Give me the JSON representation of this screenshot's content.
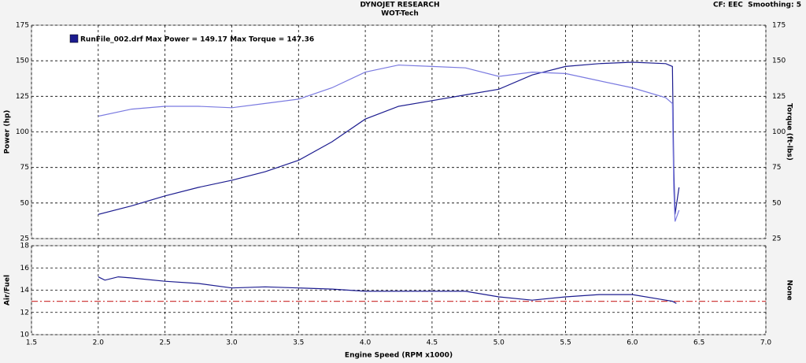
{
  "chart_data": [
    {
      "type": "line",
      "title": "DYNOJET RESEARCH",
      "subtitle": "WOT-Tech",
      "annotation": "CF: EEC  Smoothing: 5",
      "legend_text": "RunFile_002.drf Max Power = 149.17 Max Torque = 147.36",
      "ylabel": "Power (hp)",
      "y2label": "Torque (ft-lbs)",
      "x": [
        2.0,
        2.25,
        2.5,
        2.75,
        3.0,
        3.25,
        3.5,
        3.75,
        4.0,
        4.25,
        4.5,
        4.75,
        5.0,
        5.25,
        5.5,
        5.75,
        6.0,
        6.25,
        6.3,
        6.31,
        6.32,
        6.35
      ],
      "series": [
        {
          "color": "#1c1c8f",
          "values": [
            42,
            48,
            55,
            61,
            66,
            72,
            80,
            93,
            109,
            118,
            122,
            126,
            130,
            140,
            146,
            148,
            149,
            148,
            146,
            75,
            42,
            61
          ]
        },
        {
          "color": "#7a7ae0",
          "axis": "y2",
          "values": [
            111,
            116,
            118,
            118,
            117,
            120,
            123,
            131,
            142,
            147,
            146,
            145,
            139,
            142,
            141,
            136,
            131,
            124,
            120,
            60,
            37,
            45
          ]
        }
      ],
      "ylim": [
        25,
        175
      ],
      "yticks": [
        25,
        50,
        75,
        100,
        125,
        150,
        175
      ],
      "y2lim": [
        25,
        175
      ],
      "y2ticks": [
        25,
        50,
        75,
        100,
        125,
        150,
        175
      ],
      "grid": true
    },
    {
      "type": "line",
      "ylabel": "Air/Fuel",
      "y2label": "None",
      "xlabel": "Engine Speed (RPM x1000)",
      "x": [
        2.0,
        2.05,
        2.15,
        2.25,
        2.5,
        2.75,
        3.0,
        3.25,
        3.5,
        3.75,
        4.0,
        4.25,
        4.5,
        4.75,
        5.0,
        5.25,
        5.5,
        5.75,
        6.0,
        6.25,
        6.3,
        6.33
      ],
      "series": [
        {
          "color": "#1c1c8f",
          "values": [
            15.2,
            14.9,
            15.2,
            15.1,
            14.8,
            14.6,
            14.2,
            14.3,
            14.2,
            14.1,
            13.9,
            13.9,
            13.9,
            13.9,
            13.4,
            13.1,
            13.4,
            13.6,
            13.6,
            13.1,
            13.0,
            12.8
          ]
        }
      ],
      "reference_line": 13,
      "reference_color": "#d04040",
      "xlim": [
        1.5,
        7.0
      ],
      "xticks": [
        1.5,
        {
          "value": 2,
          "label": "2.0"
        },
        2.5,
        {
          "value": 3,
          "label": "3.0"
        },
        3.5,
        {
          "value": 4,
          "label": "4.0"
        },
        4.5,
        {
          "value": 5,
          "label": "5.0"
        },
        5.5,
        {
          "value": 6,
          "label": "6.0"
        },
        6.5,
        {
          "value": 7,
          "label": "7.0"
        }
      ],
      "ylim": [
        10,
        18
      ],
      "yticks": [
        10,
        12,
        14,
        16,
        18
      ],
      "grid": true
    }
  ]
}
